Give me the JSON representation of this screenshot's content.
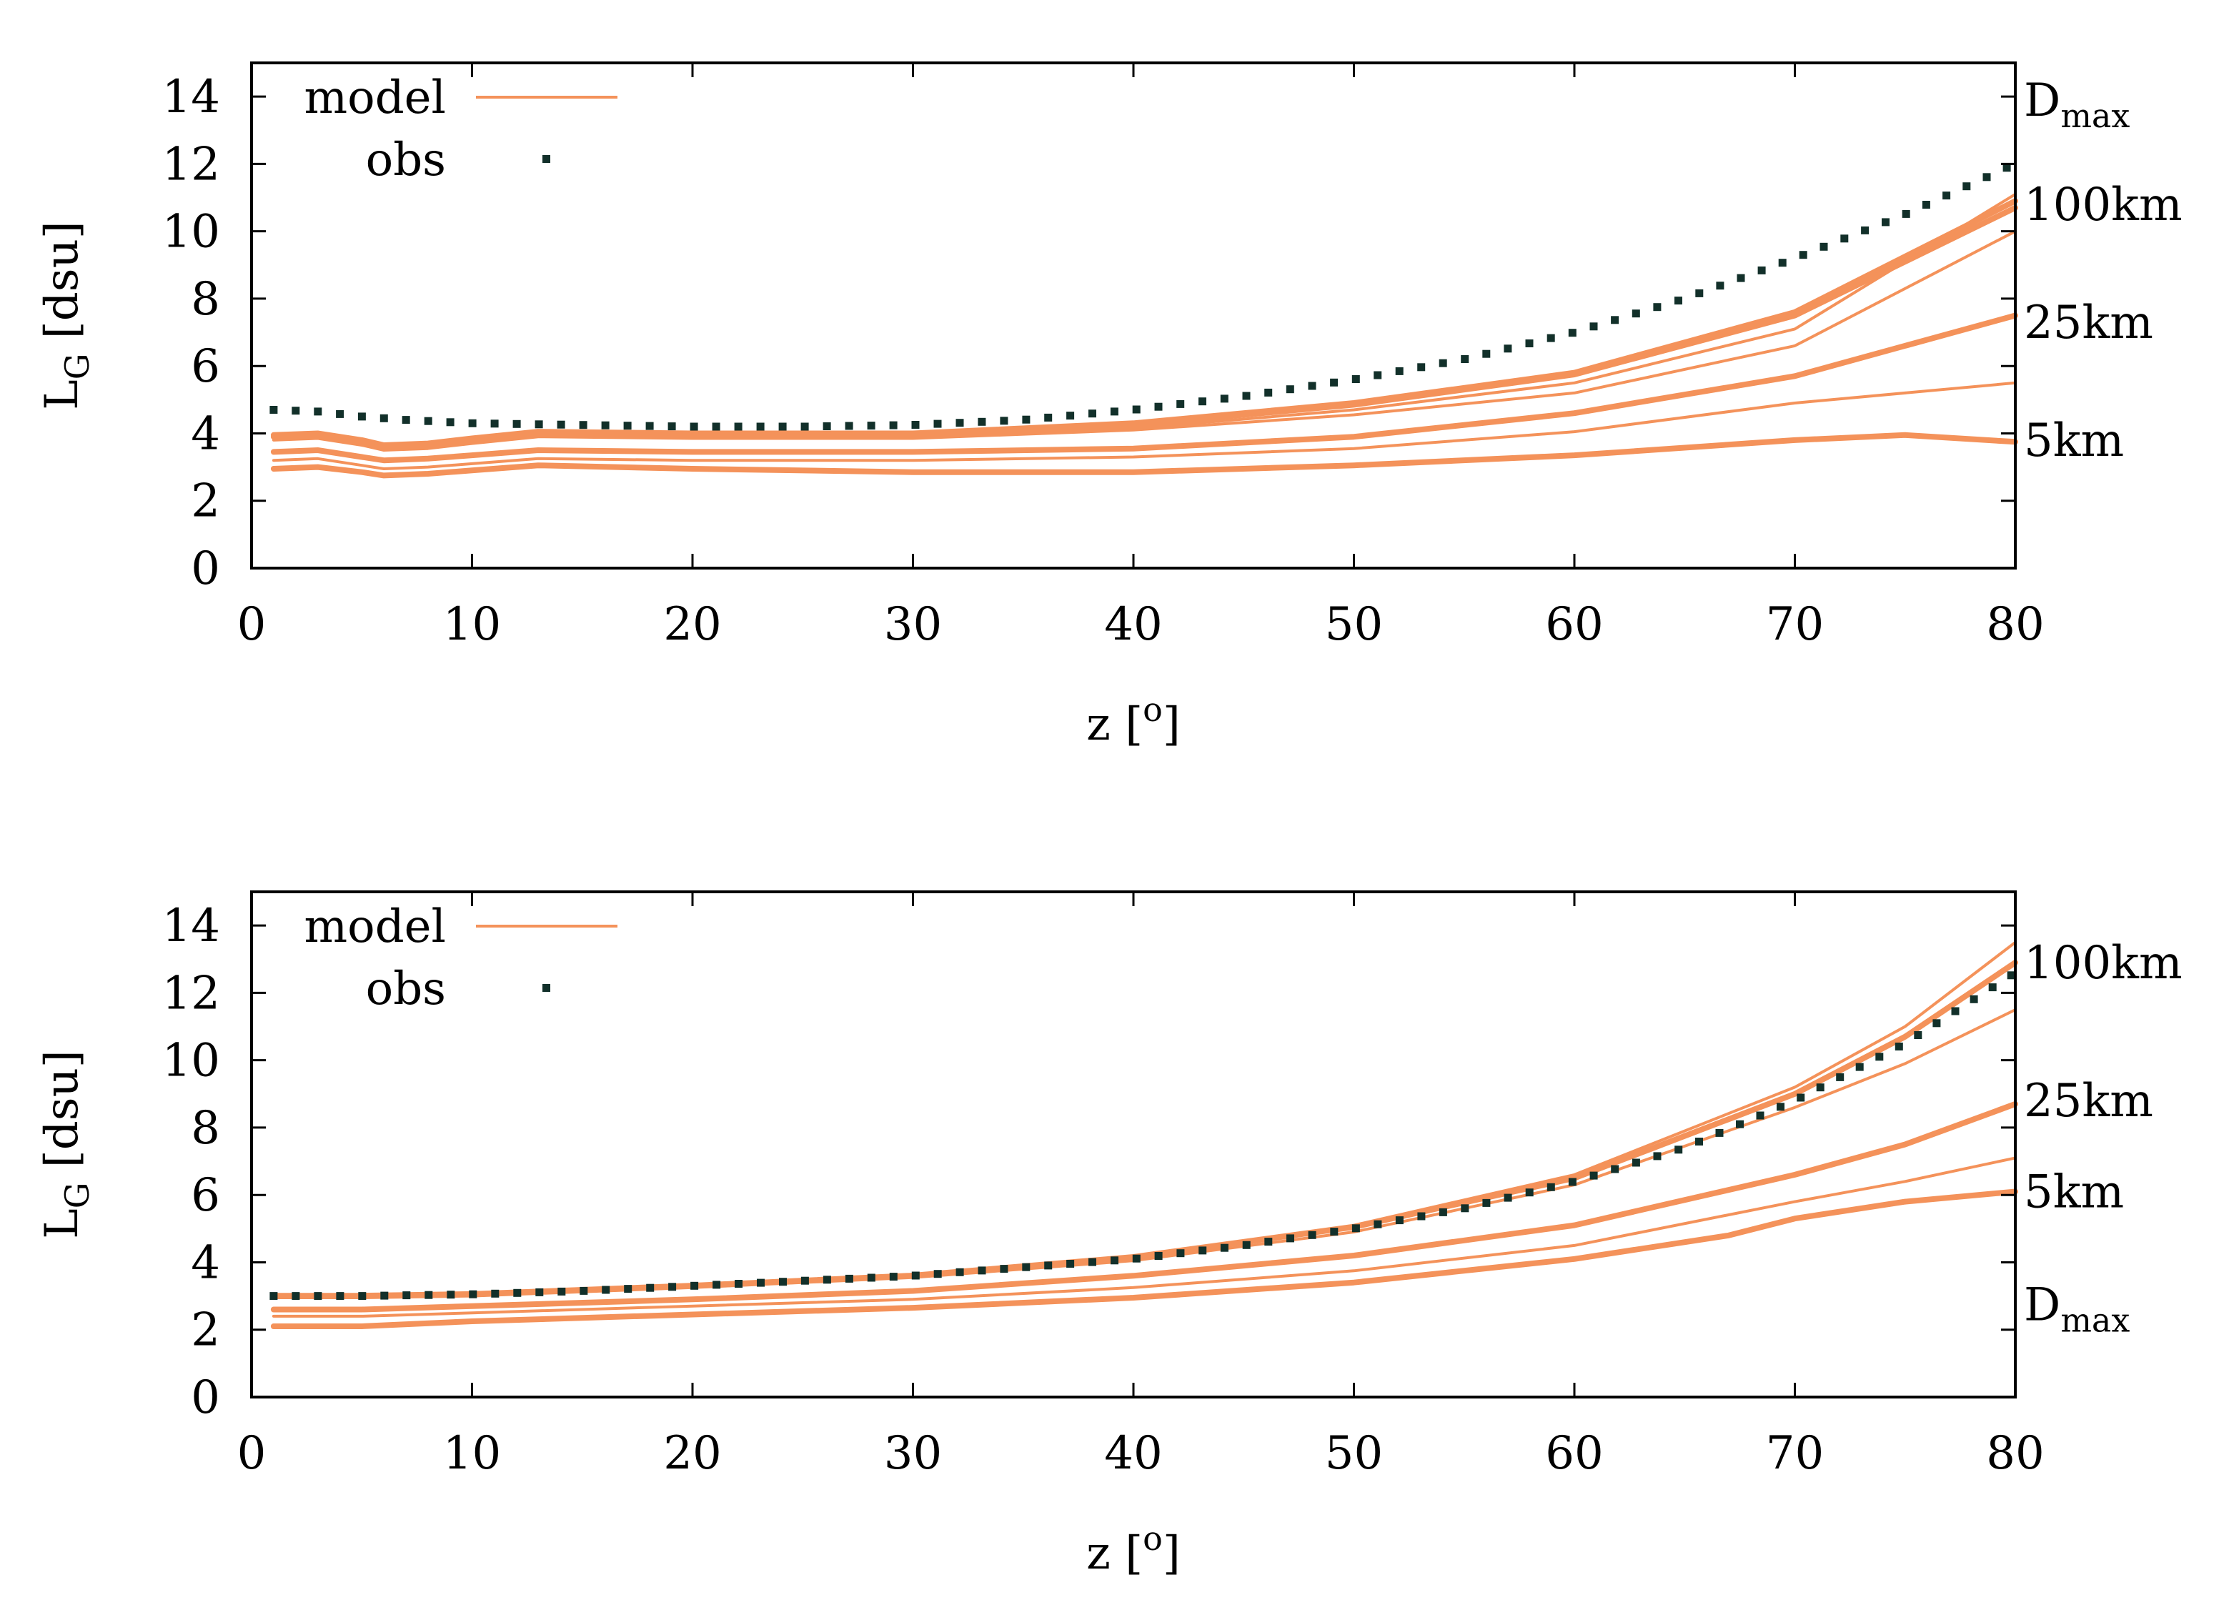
{
  "colors": {
    "model": "#f4925a",
    "obs": "#12302a",
    "axis": "#000000"
  },
  "chart_data": [
    {
      "type": "line",
      "ylabel_main": "L",
      "ylabel_sub": "G",
      "ylabel_units": " [dsu]",
      "xlabel": "z [",
      "xlabel_sup": "o",
      "xlabel_end": "]",
      "xlim": [
        0,
        80
      ],
      "ylim": [
        0,
        15
      ],
      "xticks": [
        "0",
        "10",
        "20",
        "30",
        "40",
        "50",
        "60",
        "70",
        "80"
      ],
      "yticks": [
        "0",
        "2",
        "4",
        "6",
        "8",
        "10",
        "12",
        "14"
      ],
      "legend": {
        "model": "model",
        "obs": "obs"
      },
      "annotations": [
        {
          "main": "D",
          "sub": "max",
          "at_y": 13.9
        },
        {
          "main": "100km",
          "sub": "",
          "at_y": 10.8
        },
        {
          "main": "25km",
          "sub": "",
          "at_y": 7.3
        },
        {
          "main": "5km",
          "sub": "",
          "at_y": 3.8
        }
      ],
      "obs": {
        "x": [
          1,
          3,
          5,
          7,
          10,
          15,
          20,
          25,
          30,
          35,
          40,
          45,
          50,
          55,
          60,
          65,
          70,
          75,
          80
        ],
        "y": [
          4.7,
          4.65,
          4.5,
          4.4,
          4.3,
          4.25,
          4.2,
          4.2,
          4.25,
          4.4,
          4.7,
          5.1,
          5.6,
          6.2,
          7.0,
          8.0,
          9.2,
          10.5,
          12.0
        ]
      },
      "series": [
        {
          "name": "model",
          "width": "thick",
          "x": [
            1,
            3,
            5,
            6,
            8,
            10,
            13,
            20,
            30,
            40,
            50,
            60,
            70,
            80
          ],
          "y": [
            3.95,
            4.0,
            3.8,
            3.65,
            3.7,
            3.85,
            4.05,
            4.0,
            4.0,
            4.3,
            4.9,
            5.8,
            7.6,
            10.9
          ]
        },
        {
          "name": "model",
          "width": "thick",
          "x": [
            1,
            3,
            5,
            6,
            8,
            10,
            13,
            20,
            30,
            40,
            50,
            60,
            70,
            80
          ],
          "y": [
            3.9,
            3.95,
            3.75,
            3.6,
            3.65,
            3.8,
            4.0,
            3.95,
            3.95,
            4.25,
            4.85,
            5.75,
            7.5,
            10.7
          ]
        },
        {
          "name": "model",
          "width": "thin",
          "x": [
            1,
            3,
            5,
            6,
            8,
            10,
            13,
            20,
            30,
            40,
            50,
            60,
            70,
            80
          ],
          "y": [
            3.85,
            3.9,
            3.7,
            3.55,
            3.6,
            3.75,
            3.95,
            3.9,
            3.9,
            4.15,
            4.7,
            5.5,
            7.1,
            11.1
          ]
        },
        {
          "name": "model",
          "width": "thin",
          "x": [
            1,
            3,
            5,
            6,
            8,
            10,
            13,
            20,
            30,
            40,
            50,
            60,
            70,
            80
          ],
          "y": [
            3.8,
            3.85,
            3.65,
            3.5,
            3.55,
            3.7,
            3.9,
            3.85,
            3.85,
            4.1,
            4.55,
            5.2,
            6.6,
            10.0
          ]
        },
        {
          "name": "model",
          "width": "thick",
          "x": [
            1,
            3,
            5,
            6,
            8,
            10,
            13,
            20,
            30,
            40,
            50,
            60,
            70,
            80
          ],
          "y": [
            3.45,
            3.5,
            3.3,
            3.2,
            3.25,
            3.35,
            3.5,
            3.45,
            3.45,
            3.55,
            3.9,
            4.6,
            5.7,
            7.5
          ]
        },
        {
          "name": "model",
          "width": "thin",
          "x": [
            1,
            3,
            5,
            6,
            8,
            10,
            13,
            20,
            30,
            40,
            50,
            60,
            70,
            80
          ],
          "y": [
            3.2,
            3.25,
            3.05,
            2.95,
            3.0,
            3.1,
            3.25,
            3.2,
            3.2,
            3.3,
            3.55,
            4.05,
            4.9,
            5.5
          ]
        },
        {
          "name": "model",
          "width": "thick",
          "x": [
            1,
            3,
            5,
            6,
            8,
            10,
            13,
            20,
            30,
            40,
            50,
            60,
            70,
            75,
            80
          ],
          "y": [
            2.95,
            3.0,
            2.85,
            2.75,
            2.8,
            2.9,
            3.05,
            2.95,
            2.85,
            2.85,
            3.05,
            3.35,
            3.8,
            3.95,
            3.75
          ]
        }
      ]
    },
    {
      "type": "line",
      "ylabel_main": "L",
      "ylabel_sub": "G",
      "ylabel_units": " [dsu]",
      "xlabel": "z [",
      "xlabel_sup": "o",
      "xlabel_end": "]",
      "xlim": [
        0,
        80
      ],
      "ylim": [
        0,
        15
      ],
      "xticks": [
        "0",
        "10",
        "20",
        "30",
        "40",
        "50",
        "60",
        "70",
        "80"
      ],
      "yticks": [
        "0",
        "2",
        "4",
        "6",
        "8",
        "10",
        "12",
        "14"
      ],
      "legend": {
        "model": "model",
        "obs": "obs"
      },
      "annotations": [
        {
          "main": "100km",
          "sub": "",
          "at_y": 12.9
        },
        {
          "main": "25km",
          "sub": "",
          "at_y": 8.8
        },
        {
          "main": "5km",
          "sub": "",
          "at_y": 6.1
        },
        {
          "main": "D",
          "sub": "max",
          "at_y": 2.75
        }
      ],
      "obs": {
        "x": [
          1,
          5,
          10,
          15,
          20,
          25,
          30,
          35,
          40,
          45,
          50,
          55,
          60,
          65,
          70,
          75,
          80
        ],
        "y": [
          3.0,
          3.0,
          3.05,
          3.15,
          3.3,
          3.45,
          3.6,
          3.85,
          4.1,
          4.5,
          5.0,
          5.6,
          6.4,
          7.4,
          8.8,
          10.5,
          12.6
        ]
      },
      "series": [
        {
          "name": "model",
          "width": "thin",
          "x": [
            1,
            5,
            10,
            20,
            30,
            40,
            50,
            60,
            70,
            75,
            80
          ],
          "y": [
            3.05,
            3.05,
            3.1,
            3.35,
            3.65,
            4.2,
            5.1,
            6.6,
            9.2,
            11.0,
            13.5
          ]
        },
        {
          "name": "model",
          "width": "thick",
          "x": [
            1,
            5,
            10,
            20,
            30,
            40,
            50,
            60,
            70,
            75,
            80
          ],
          "y": [
            3.0,
            3.0,
            3.05,
            3.3,
            3.6,
            4.15,
            5.05,
            6.5,
            9.0,
            10.7,
            12.9
          ]
        },
        {
          "name": "model",
          "width": "thin",
          "x": [
            1,
            5,
            10,
            20,
            30,
            40,
            50,
            60,
            70,
            75,
            80
          ],
          "y": [
            2.95,
            2.95,
            3.0,
            3.25,
            3.55,
            4.05,
            4.9,
            6.3,
            8.6,
            9.9,
            11.5
          ]
        },
        {
          "name": "model",
          "width": "thick",
          "x": [
            1,
            5,
            10,
            20,
            30,
            40,
            50,
            60,
            70,
            75,
            80
          ],
          "y": [
            2.6,
            2.6,
            2.7,
            2.9,
            3.15,
            3.6,
            4.2,
            5.1,
            6.6,
            7.5,
            8.7
          ]
        },
        {
          "name": "model",
          "width": "thin",
          "x": [
            1,
            5,
            10,
            20,
            30,
            40,
            50,
            60,
            70,
            75,
            80
          ],
          "y": [
            2.4,
            2.4,
            2.5,
            2.7,
            2.9,
            3.25,
            3.75,
            4.5,
            5.8,
            6.4,
            7.1
          ]
        },
        {
          "name": "model",
          "width": "thick",
          "x": [
            1,
            5,
            10,
            20,
            30,
            40,
            50,
            60,
            67,
            70,
            75,
            80
          ],
          "y": [
            2.1,
            2.1,
            2.25,
            2.45,
            2.65,
            2.95,
            3.4,
            4.1,
            4.8,
            5.3,
            5.8,
            6.1
          ]
        }
      ]
    }
  ]
}
